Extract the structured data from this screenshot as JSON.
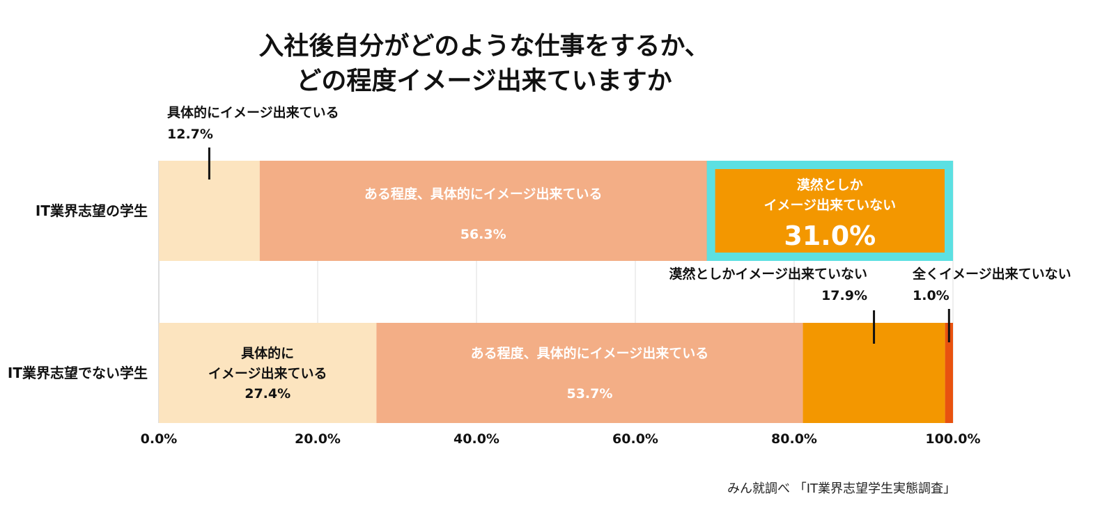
{
  "title_line1": "入社後自分がどのような仕事をするか、",
  "title_line2": "どの程度イメージ出来ていますか",
  "source": "みん就調べ 「IT業界志望学生実態調査」",
  "chart_data": {
    "type": "bar",
    "orientation": "horizontal",
    "stacked": true,
    "xlim": [
      0,
      100
    ],
    "x_ticks": [
      "0.0%",
      "20.0%",
      "40.0%",
      "60.0%",
      "80.0%",
      "100.0%"
    ],
    "x_tick_values": [
      0,
      20,
      40,
      60,
      80,
      100
    ],
    "grid": true,
    "categories": [
      "IT業界志望の学生",
      "IT業界志望でない学生"
    ],
    "series": [
      {
        "name": "具体的にイメージ出来ている",
        "color": "#fce4bf",
        "values": [
          12.7,
          27.4
        ]
      },
      {
        "name": "ある程度、具体的にイメージ出来ている",
        "color": "#f3ae86",
        "values": [
          56.3,
          53.7
        ]
      },
      {
        "name": "漠然としかイメージ出来ていない",
        "color": "#f39700",
        "values": [
          31.0,
          17.9
        ]
      },
      {
        "name": "全くイメージ出来ていない",
        "color": "#e8520f",
        "values": [
          0,
          1.0
        ]
      }
    ],
    "highlight": {
      "row": 0,
      "series": 2,
      "border_color": "#5ce0e2"
    },
    "labels": {
      "r0_s0_name": "具体的にイメージ出来ている",
      "r0_s0_value": "12.7%",
      "r0_s1_name": "ある程度、具体的にイメージ出来ている",
      "r0_s1_value": "56.3%",
      "r0_s2_name_line1": "漠然としか",
      "r0_s2_name_line2": "イメージ出来ていない",
      "r0_s2_value": "31.0%",
      "r1_s0_name_line1": "具体的に",
      "r1_s0_name_line2": "イメージ出来ている",
      "r1_s0_value": "27.4%",
      "r1_s1_name": "ある程度、具体的にイメージ出来ている",
      "r1_s1_value": "53.7%",
      "r1_s2_name": "漠然としかイメージ出来ていない",
      "r1_s2_value": "17.9%",
      "r1_s3_name": "全くイメージ出来ていない",
      "r1_s3_value": "1.0%"
    }
  }
}
